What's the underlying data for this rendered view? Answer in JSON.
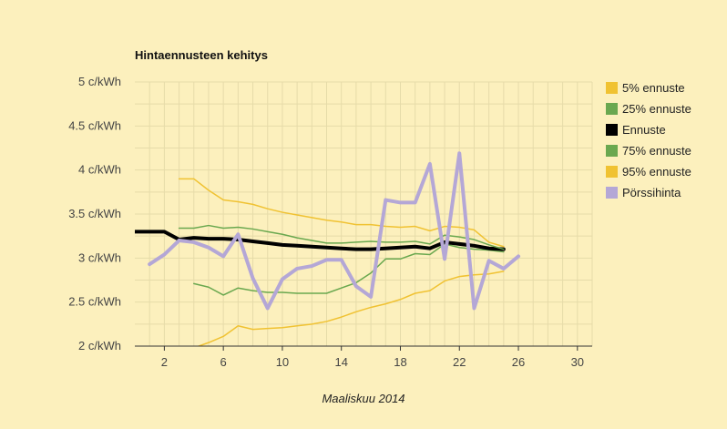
{
  "chart_data": {
    "type": "line",
    "title": "Hintaennusteen kehitys",
    "xlabel": "Maaliskuu 2014",
    "ylabel": "",
    "xlim": [
      0,
      31
    ],
    "ylim": [
      2,
      5
    ],
    "x_ticks": [
      2,
      6,
      10,
      14,
      18,
      22,
      26,
      30
    ],
    "y_ticks": [
      2,
      2.5,
      3,
      3.5,
      4,
      4.5,
      5
    ],
    "y_tick_labels": [
      "2 c/kWh",
      "2.5 c/kWh",
      "3 c/kWh",
      "3.5 c/kWh",
      "4 c/kWh",
      "4.5 c/kWh",
      "5 c/kWh"
    ],
    "grid": true,
    "legend_position": "right",
    "series": [
      {
        "name": "5% ennuste",
        "color": "#f0c232",
        "width": 1.5,
        "x": [
          3,
          4,
          5,
          6,
          7,
          8,
          9,
          10,
          11,
          12,
          13,
          14,
          15,
          16,
          17,
          18,
          19,
          20,
          21,
          22,
          23,
          24,
          25
        ],
        "values": [
          1.95,
          1.98,
          2.04,
          2.11,
          2.23,
          2.19,
          2.2,
          2.21,
          2.23,
          2.25,
          2.28,
          2.33,
          2.39,
          2.44,
          2.48,
          2.53,
          2.6,
          2.63,
          2.74,
          2.79,
          2.81,
          2.82,
          2.85
        ]
      },
      {
        "name": "25% ennuste",
        "color": "#6aa84f",
        "width": 1.5,
        "x": [
          4,
          5,
          6,
          7,
          8,
          9,
          10,
          11,
          12,
          13,
          14,
          15,
          16,
          17,
          18,
          19,
          20,
          21,
          22,
          23,
          24,
          25
        ],
        "values": [
          2.71,
          2.67,
          2.58,
          2.66,
          2.63,
          2.61,
          2.61,
          2.6,
          2.6,
          2.6,
          2.66,
          2.72,
          2.83,
          2.99,
          2.99,
          3.05,
          3.04,
          3.16,
          3.12,
          3.1,
          3.09,
          3.07
        ]
      },
      {
        "name": "Ennuste",
        "color": "#000000",
        "width": 4,
        "x": [
          0,
          1,
          2,
          3,
          4,
          5,
          6,
          7,
          8,
          9,
          10,
          11,
          12,
          13,
          14,
          15,
          16,
          17,
          18,
          19,
          20,
          21,
          22,
          23,
          24,
          25
        ],
        "values": [
          3.3,
          3.3,
          3.3,
          3.21,
          3.23,
          3.22,
          3.22,
          3.21,
          3.19,
          3.17,
          3.15,
          3.14,
          3.13,
          3.12,
          3.11,
          3.1,
          3.1,
          3.11,
          3.12,
          3.13,
          3.11,
          3.18,
          3.16,
          3.14,
          3.11,
          3.1
        ]
      },
      {
        "name": "75% ennuste",
        "color": "#6aa84f",
        "width": 1.5,
        "x": [
          3,
          4,
          5,
          6,
          7,
          8,
          9,
          10,
          11,
          12,
          13,
          14,
          15,
          16,
          17,
          18,
          19,
          20,
          21,
          22,
          23,
          24,
          25
        ],
        "values": [
          3.34,
          3.34,
          3.37,
          3.34,
          3.35,
          3.33,
          3.3,
          3.27,
          3.23,
          3.2,
          3.17,
          3.17,
          3.18,
          3.19,
          3.18,
          3.18,
          3.19,
          3.16,
          3.26,
          3.24,
          3.21,
          3.15,
          3.1
        ]
      },
      {
        "name": "95% ennuste",
        "color": "#f0c232",
        "width": 1.5,
        "x": [
          3,
          4,
          5,
          6,
          7,
          8,
          9,
          10,
          11,
          12,
          13,
          14,
          15,
          16,
          17,
          18,
          19,
          20,
          21,
          22,
          23,
          24,
          25
        ],
        "values": [
          3.9,
          3.9,
          3.77,
          3.66,
          3.64,
          3.61,
          3.56,
          3.52,
          3.49,
          3.46,
          3.43,
          3.41,
          3.38,
          3.38,
          3.36,
          3.35,
          3.36,
          3.31,
          3.36,
          3.35,
          3.32,
          3.18,
          3.13
        ]
      },
      {
        "name": "Pörssihinta",
        "color": "#b4a7d6",
        "width": 4,
        "x": [
          1,
          2,
          3,
          4,
          5,
          6,
          7,
          8,
          9,
          10,
          11,
          12,
          13,
          14,
          15,
          16,
          17,
          18,
          19,
          20,
          21,
          22,
          23,
          24,
          25,
          26
        ],
        "values": [
          2.93,
          3.04,
          3.2,
          3.18,
          3.12,
          3.02,
          3.27,
          2.77,
          2.43,
          2.76,
          2.88,
          2.91,
          2.98,
          2.98,
          2.68,
          2.56,
          3.66,
          3.63,
          3.63,
          4.07,
          2.99,
          4.19,
          2.43,
          2.97,
          2.88,
          3.02
        ]
      }
    ]
  }
}
